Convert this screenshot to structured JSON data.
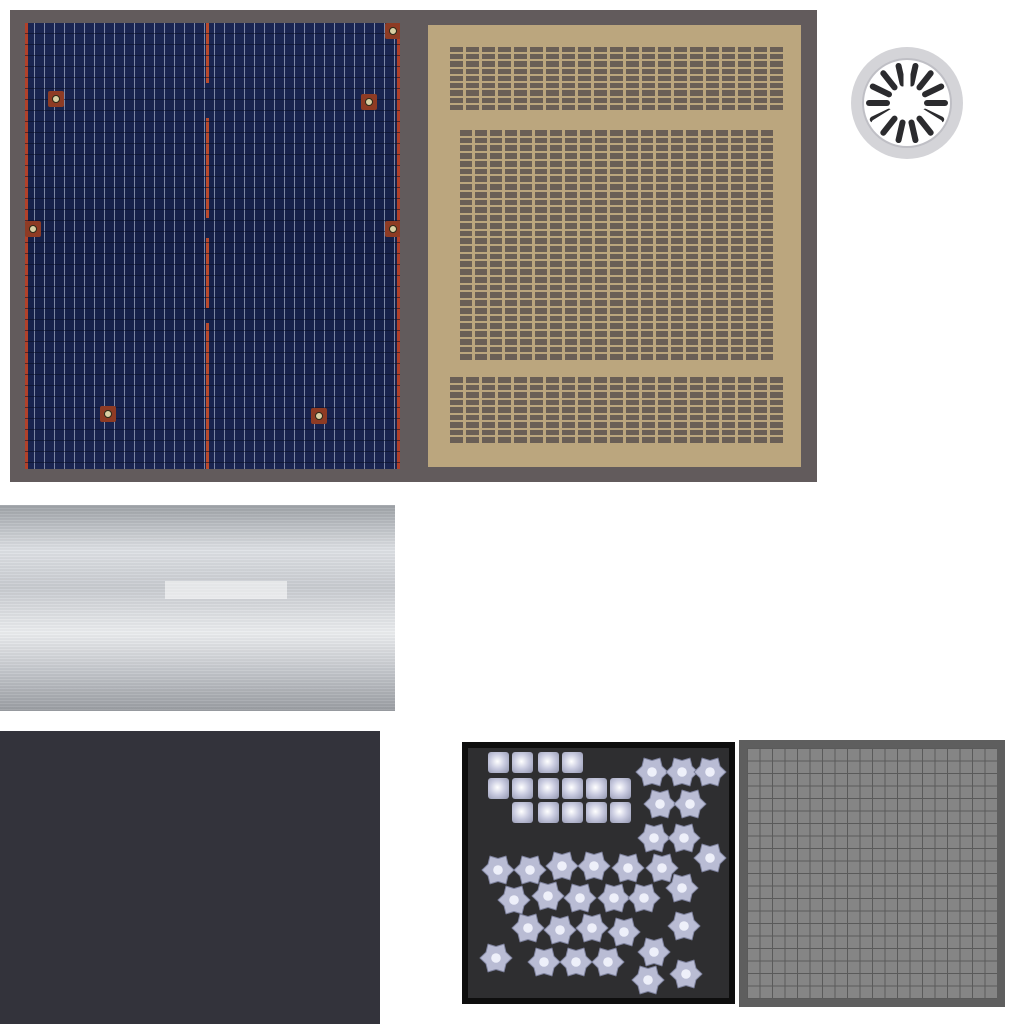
{
  "colors": {
    "frame": "#625b5c",
    "solar_panel": "#1b2652",
    "solar_trim": "#b1412a",
    "vent_panel": "#bba67e",
    "vent_slot": "#6a5f56",
    "fan_ring": "#d4d4d8",
    "fan_blade": "#2b2b2e",
    "metal": "#d4d7db",
    "dark_swatch": "#33333b",
    "gear_sheet": "#2e2e30",
    "grid_fill": "#858585",
    "grid_line": "#5a5a5a"
  },
  "icons": {
    "fan": "fan-icon"
  }
}
